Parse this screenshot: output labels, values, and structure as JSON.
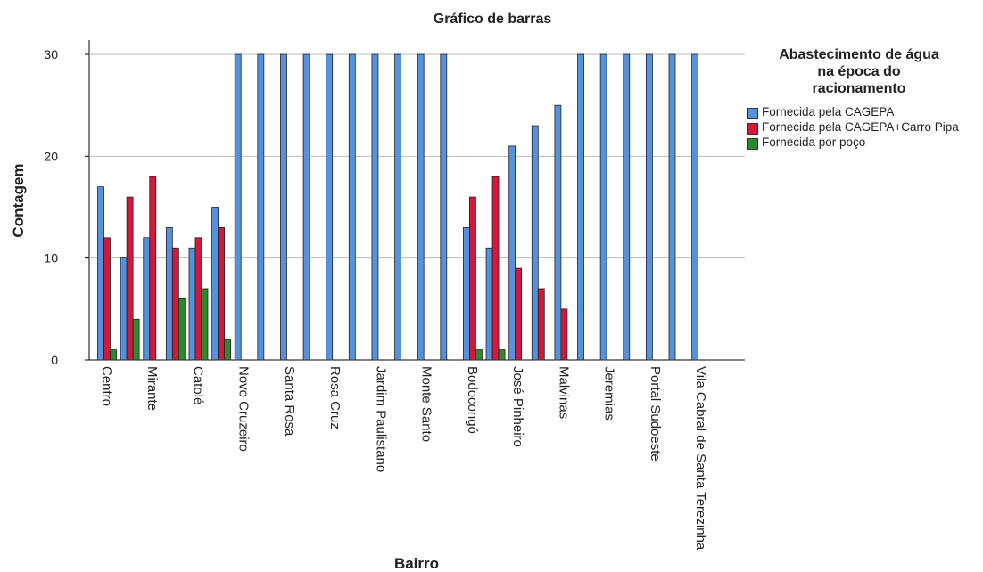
{
  "chart_data": {
    "type": "bar",
    "title": "Gráfico de barras",
    "x_label": "Bairro",
    "y_label": "Contagem",
    "categories": [
      "Centro",
      null,
      "Mirante",
      null,
      "Catolé",
      null,
      "Novo Cruzeiro",
      null,
      "Santa Rosa",
      null,
      "Rosa Cruz",
      null,
      "Jardim Paulistano",
      null,
      "Monte Santo",
      null,
      "Bodocongó",
      null,
      "José Pinheiro",
      null,
      "Malvinas",
      null,
      "Jeremias",
      null,
      "Portal Sudoeste",
      null,
      "Vila Cabral de Santa Terezinha"
    ],
    "series": [
      {
        "name": "Fornecida pela CAGEPA",
        "color": "#5591dd",
        "values": [
          17,
          10,
          12,
          13,
          11,
          15,
          30,
          30,
          30,
          30,
          30,
          30,
          30,
          30,
          30,
          30,
          13,
          11,
          21,
          23,
          25,
          30,
          30,
          30,
          30,
          30,
          30
        ]
      },
      {
        "name": "Fornecida pela CAGEPA+Carro Pipa",
        "color": "#d3183a",
        "values": [
          12,
          16,
          18,
          11,
          12,
          13,
          null,
          null,
          null,
          null,
          null,
          null,
          null,
          null,
          null,
          null,
          16,
          18,
          9,
          7,
          5,
          null,
          null,
          null,
          null,
          null,
          null
        ]
      },
      {
        "name": "Fornecida por poço",
        "color": "#2b8a2b",
        "values": [
          1,
          4,
          null,
          6,
          7,
          2,
          null,
          null,
          null,
          null,
          null,
          null,
          null,
          null,
          null,
          null,
          1,
          1,
          null,
          null,
          null,
          null,
          null,
          null,
          null,
          null,
          null
        ]
      }
    ],
    "legend_title": [
      "Abastecimento de água",
      "na época do",
      "racionamento"
    ],
    "ylim": [
      0,
      31.4
    ],
    "yticks": [
      0,
      10,
      20,
      30
    ],
    "grid": true,
    "legend": "right"
  }
}
